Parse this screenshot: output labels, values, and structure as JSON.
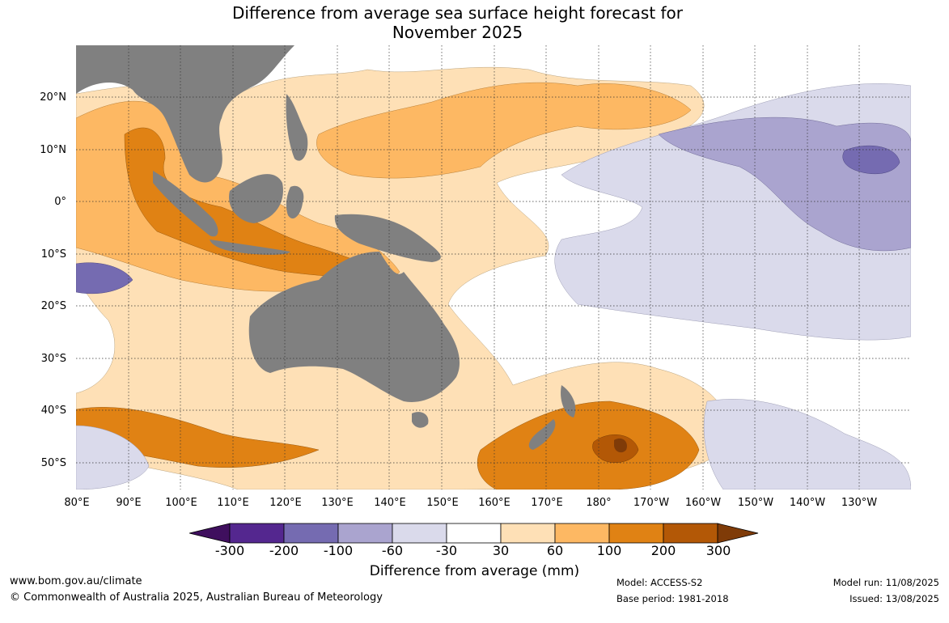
{
  "title_line1": "Difference from average sea surface height forecast for",
  "title_line2": "November 2025",
  "lat_ticks": [
    "20°N",
    "10°N",
    "0°",
    "10°S",
    "20°S",
    "30°S",
    "40°S",
    "50°S"
  ],
  "lon_ticks": [
    "80°E",
    "90°E",
    "100°E",
    "110°E",
    "120°E",
    "130°E",
    "140°E",
    "150°E",
    "160°E",
    "170°E",
    "180°",
    "170°W",
    "160°W",
    "150°W",
    "140°W",
    "130°W"
  ],
  "colorbar": {
    "labels": [
      "-300",
      "-200",
      "-100",
      "-60",
      "-30",
      "30",
      "60",
      "100",
      "200",
      "300"
    ],
    "colors": [
      "#3f0f5e",
      "#54278f",
      "#756bb1",
      "#aaa4cf",
      "#dadaeb",
      "#ffffff",
      "#fee0b6",
      "#fdb863",
      "#e08214",
      "#b35806",
      "#7f3b08"
    ],
    "title": "Difference from average (mm)"
  },
  "land_color": "#808080",
  "footer": {
    "url": "www.bom.gov.au/climate",
    "copyright": "© Commonwealth of Australia 2025, Australian Bureau of Meteorology",
    "model": "Model: ACCESS-S2",
    "base_period": "Base period: 1981-2018",
    "model_run": "Model run: 11/08/2025",
    "issued": "Issued: 13/08/2025"
  }
}
